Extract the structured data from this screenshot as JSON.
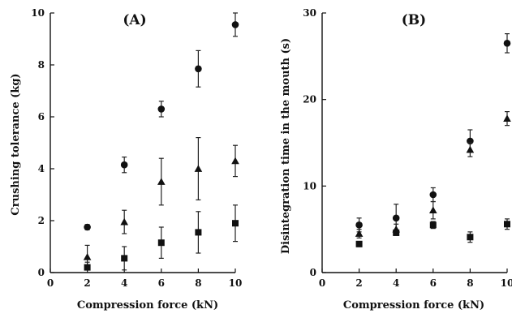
{
  "chart_data": [
    {
      "type": "scatter",
      "title": "(A)",
      "xlabel": "Compression force (kN)",
      "ylabel": "Crushing tolerance (kg)",
      "xlim": [
        0,
        10
      ],
      "ylim": [
        0,
        10
      ],
      "xticks": [
        "0",
        "2",
        "4",
        "6",
        "8",
        "10"
      ],
      "yticks": [
        "0",
        "2",
        "4",
        "6",
        "8",
        "10"
      ],
      "grid": false,
      "legend": "none",
      "series": [
        {
          "marker": "circle",
          "x": [
            2,
            4,
            6,
            8,
            10
          ],
          "y": [
            1.75,
            4.15,
            6.3,
            7.85,
            9.55
          ],
          "err": [
            0.1,
            0.3,
            0.3,
            0.7,
            0.45
          ]
        },
        {
          "marker": "triangle",
          "x": [
            2,
            4,
            6,
            8,
            10
          ],
          "y": [
            0.6,
            1.95,
            3.5,
            4.0,
            4.3
          ],
          "err": [
            0.45,
            0.45,
            0.9,
            1.2,
            0.6
          ]
        },
        {
          "marker": "square",
          "x": [
            2,
            4,
            6,
            8,
            10
          ],
          "y": [
            0.2,
            0.55,
            1.15,
            1.55,
            1.9
          ],
          "err": [
            0.2,
            0.45,
            0.6,
            0.8,
            0.7
          ]
        }
      ]
    },
    {
      "type": "scatter",
      "title": "(B)",
      "xlabel": "Compression force (kN)",
      "ylabel": "Disintegration time in the mouth (s)",
      "xlim": [
        0,
        10
      ],
      "ylim": [
        0,
        30
      ],
      "xticks": [
        "0",
        "2",
        "4",
        "6",
        "8",
        "10"
      ],
      "yticks": [
        "0",
        "10",
        "20",
        "30"
      ],
      "grid": false,
      "legend": "none",
      "series": [
        {
          "marker": "circle",
          "x": [
            2,
            4,
            6,
            8,
            10
          ],
          "y": [
            5.5,
            6.3,
            9.0,
            15.2,
            26.5
          ],
          "err": [
            0.8,
            1.6,
            0.8,
            1.3,
            1.1
          ]
        },
        {
          "marker": "triangle",
          "x": [
            2,
            4,
            6,
            8,
            10
          ],
          "y": [
            4.5,
            5.0,
            7.2,
            14.2,
            17.8
          ],
          "err": [
            0.5,
            0.6,
            1.0,
            0.8,
            0.8
          ]
        },
        {
          "marker": "square",
          "x": [
            2,
            4,
            6,
            8,
            10
          ],
          "y": [
            3.3,
            4.6,
            5.5,
            4.1,
            5.6
          ],
          "err": [
            0.3,
            0.3,
            0.4,
            0.6,
            0.6
          ]
        }
      ]
    }
  ]
}
